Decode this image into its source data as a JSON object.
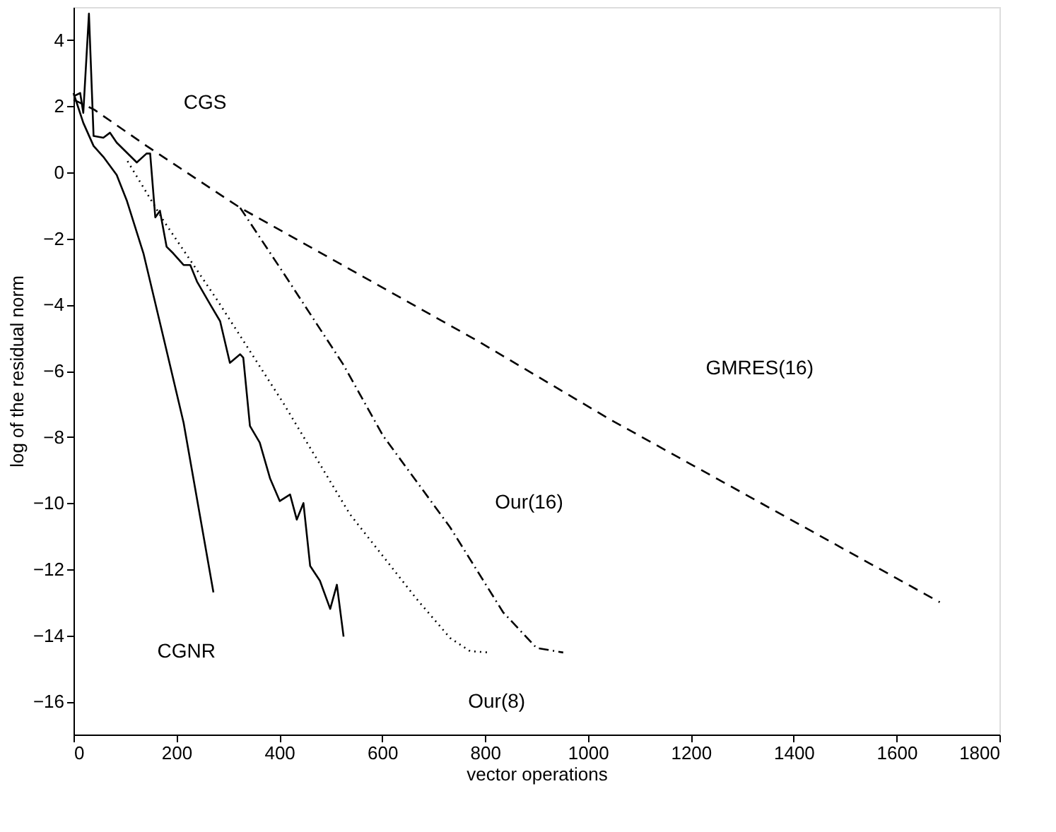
{
  "chart_data": {
    "type": "line",
    "xlabel": "vector operations",
    "ylabel": "log of the residual norm",
    "xlim": [
      0,
      1800
    ],
    "ylim": [
      -17,
      5
    ],
    "xticks": [
      0,
      200,
      400,
      600,
      800,
      1000,
      1200,
      1400,
      1600,
      1800
    ],
    "yticks": [
      -16,
      -14,
      -12,
      -10,
      -8,
      -6,
      -4,
      -2,
      0,
      2,
      4
    ],
    "grid": false,
    "marker": "none",
    "series": [
      {
        "color": "#000000",
        "line_style": "solid",
        "x": [
          0,
          13,
          19,
          30,
          39,
          58,
          71,
          84,
          123,
          142,
          149,
          159,
          168,
          181,
          194,
          214,
          227,
          240,
          266,
          285,
          304,
          324,
          330,
          343,
          362,
          382,
          401,
          421,
          434,
          447,
          460,
          479,
          499,
          512,
          525
        ],
        "values": [
          2.3,
          2.4,
          1.8,
          4.8,
          1.1,
          1.05,
          1.2,
          0.9,
          0.3,
          0.57,
          0.57,
          -1.36,
          -1.16,
          -2.25,
          -2.45,
          -2.8,
          -2.8,
          -3.3,
          -4.0,
          -4.5,
          -5.76,
          -5.5,
          -5.6,
          -7.67,
          -8.17,
          -9.25,
          -9.94,
          -9.74,
          -10.5,
          -10.0,
          -11.9,
          -12.35,
          -13.2,
          -12.47,
          -14.04
        ]
      },
      {
        "color": "#000000",
        "line_style": "solid",
        "x": [
          0,
          19,
          39,
          58,
          84,
          104,
          136,
          175,
          214,
          272
        ],
        "values": [
          2.4,
          1.5,
          0.8,
          0.47,
          -0.08,
          -0.87,
          -2.45,
          -5.0,
          -7.57,
          -12.7
        ]
      },
      {
        "color": "#000000",
        "line_style": "dotted",
        "x": [
          105,
          175,
          278,
          408,
          537,
          667,
          732,
          771,
          810
        ],
        "values": [
          0.34,
          -1.46,
          -3.83,
          -6.98,
          -10.33,
          -12.9,
          -14.08,
          -14.48,
          -14.52
        ]
      },
      {
        "color": "#000000",
        "line_style": "dashdot",
        "x": [
          324,
          408,
          524,
          602,
          732,
          835,
          900,
          952
        ],
        "values": [
          -1.07,
          -3.04,
          -5.8,
          -7.97,
          -10.73,
          -13.3,
          -14.38,
          -14.52
        ]
      },
      {
        "color": "#000000",
        "line_style": "dashed",
        "x": [
          0,
          40,
          142,
          324,
          786,
          1043,
          1684
        ],
        "values": [
          2.2,
          1.9,
          0.8,
          -1.07,
          -5.1,
          -7.47,
          -13.0
        ]
      }
    ],
    "annotations": [
      "CGS",
      "CGNR",
      "Our(16)",
      "Our(8)",
      "GMRES(16)"
    ]
  }
}
